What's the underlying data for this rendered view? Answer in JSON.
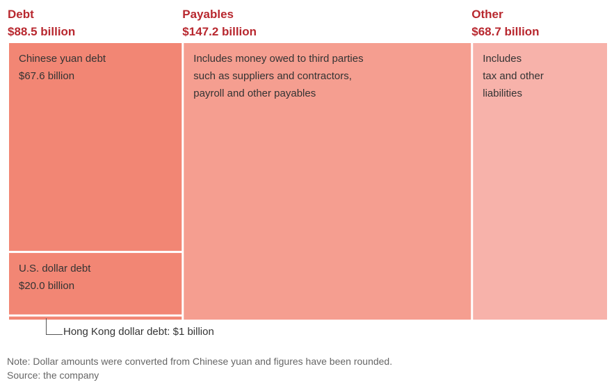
{
  "chart_data": {
    "type": "treemap",
    "categories": [
      {
        "name": "Debt",
        "total": "$88.5 billion",
        "value": 88.5,
        "color": "#f28674",
        "children": [
          {
            "label": "Chinese yuan debt",
            "amount": "$67.6 billion",
            "value": 67.6
          },
          {
            "label": "U.S. dollar debt",
            "amount": "$20.0 billion",
            "value": 20.0
          },
          {
            "label": "Hong Kong dollar debt: $1 billion",
            "amount": "",
            "value": 1.0,
            "callout": true
          }
        ]
      },
      {
        "name": "Payables",
        "total": "$147.2 billion",
        "value": 147.2,
        "color": "#f59e90",
        "description": "Includes money owed to third parties\nsuch as suppliers and contractors,\npayroll and other payables"
      },
      {
        "name": "Other",
        "total": "$68.7 billion",
        "value": 68.7,
        "color": "#f7b2aa",
        "description": "Includes\ntax and other\nliabilities"
      }
    ],
    "header_color": "#b8282f"
  },
  "note": "Note: Dollar amounts were converted from Chinese yuan and figures have been rounded.",
  "source": "Source: the company"
}
